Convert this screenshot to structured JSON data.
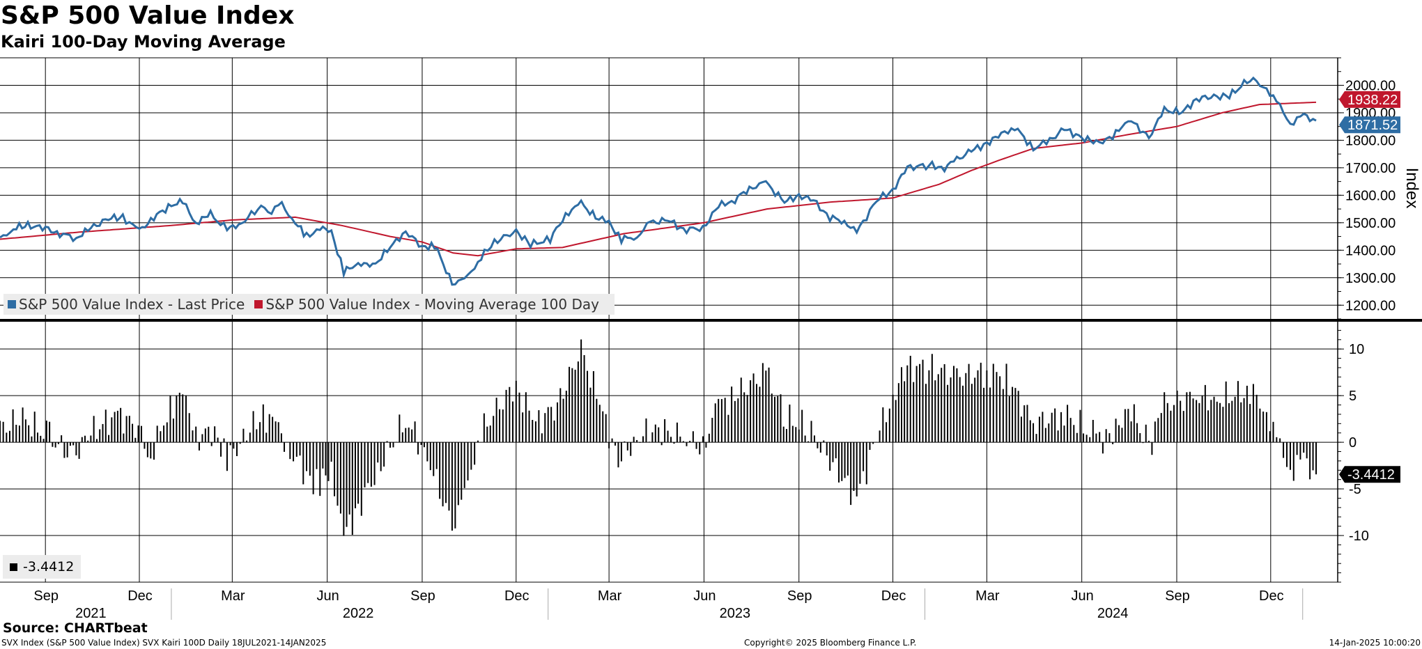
{
  "title": "S&P 500 Value Index",
  "subtitle": "Kairi 100-Day Moving Average",
  "source": "Source: CHARTbeat",
  "footer": {
    "left": "SVX Index (S&P 500 Value Index) SVX Kairi 100D  Daily 18JUL2021-14JAN2025",
    "center": "Copyright© 2025 Bloomberg Finance L.P.",
    "right": "14-Jan-2025 10:00:20"
  },
  "colors": {
    "price": "#2e6da4",
    "ma": "#c0172d",
    "kairi": "#000000",
    "grid": "#000000"
  },
  "chart_data": [
    {
      "type": "line",
      "ylabel": "Index",
      "ylim": [
        1150,
        2100
      ],
      "yticks": [
        "2000.00",
        "1900.00",
        "1800.00",
        "1700.00",
        "1600.00",
        "1500.00",
        "1400.00",
        "1300.00",
        "1200.00"
      ],
      "series": [
        {
          "name": "S&P 500 Value Index - Last Price",
          "color": "#2e6da4",
          "last_label": "1871.52",
          "points": [
            [
              "2021-07-19",
              1440
            ],
            [
              "2021-08-01",
              1480
            ],
            [
              "2021-08-15",
              1490
            ],
            [
              "2021-09-01",
              1480
            ],
            [
              "2021-09-15",
              1460
            ],
            [
              "2021-10-01",
              1445
            ],
            [
              "2021-10-15",
              1480
            ],
            [
              "2021-11-01",
              1515
            ],
            [
              "2021-11-15",
              1520
            ],
            [
              "2021-12-01",
              1470
            ],
            [
              "2021-12-15",
              1520
            ],
            [
              "2022-01-01",
              1565
            ],
            [
              "2022-01-12",
              1575
            ],
            [
              "2022-01-25",
              1500
            ],
            [
              "2022-02-08",
              1530
            ],
            [
              "2022-02-24",
              1475
            ],
            [
              "2022-03-10",
              1500
            ],
            [
              "2022-03-29",
              1560
            ],
            [
              "2022-04-08",
              1545
            ],
            [
              "2022-04-18",
              1565
            ],
            [
              "2022-05-01",
              1500
            ],
            [
              "2022-05-12",
              1450
            ],
            [
              "2022-05-25",
              1480
            ],
            [
              "2022-06-05",
              1470
            ],
            [
              "2022-06-17",
              1320
            ],
            [
              "2022-07-01",
              1355
            ],
            [
              "2022-07-15",
              1340
            ],
            [
              "2022-08-01",
              1410
            ],
            [
              "2022-08-16",
              1470
            ],
            [
              "2022-09-01",
              1410
            ],
            [
              "2022-09-13",
              1420
            ],
            [
              "2022-09-30",
              1280
            ],
            [
              "2022-10-12",
              1290
            ],
            [
              "2022-10-25",
              1360
            ],
            [
              "2022-11-10",
              1430
            ],
            [
              "2022-12-01",
              1470
            ],
            [
              "2022-12-15",
              1420
            ],
            [
              "2023-01-03",
              1440
            ],
            [
              "2023-01-18",
              1530
            ],
            [
              "2023-02-02",
              1570
            ],
            [
              "2023-02-16",
              1520
            ],
            [
              "2023-03-01",
              1500
            ],
            [
              "2023-03-13",
              1440
            ],
            [
              "2023-03-28",
              1450
            ],
            [
              "2023-04-10",
              1500
            ],
            [
              "2023-04-27",
              1510
            ],
            [
              "2023-05-12",
              1475
            ],
            [
              "2023-05-31",
              1480
            ],
            [
              "2023-06-15",
              1560
            ],
            [
              "2023-07-01",
              1585
            ],
            [
              "2023-07-15",
              1625
            ],
            [
              "2023-07-31",
              1645
            ],
            [
              "2023-08-18",
              1575
            ],
            [
              "2023-09-01",
              1600
            ],
            [
              "2023-09-15",
              1580
            ],
            [
              "2023-10-01",
              1520
            ],
            [
              "2023-10-15",
              1505
            ],
            [
              "2023-10-27",
              1465
            ],
            [
              "2023-11-15",
              1580
            ],
            [
              "2023-12-01",
              1620
            ],
            [
              "2023-12-15",
              1700
            ],
            [
              "2024-01-05",
              1710
            ],
            [
              "2024-01-20",
              1700
            ],
            [
              "2024-02-01",
              1730
            ],
            [
              "2024-02-15",
              1760
            ],
            [
              "2024-03-01",
              1790
            ],
            [
              "2024-03-15",
              1820
            ],
            [
              "2024-03-28",
              1850
            ],
            [
              "2024-04-15",
              1770
            ],
            [
              "2024-05-01",
              1800
            ],
            [
              "2024-05-15",
              1840
            ],
            [
              "2024-06-01",
              1810
            ],
            [
              "2024-06-15",
              1790
            ],
            [
              "2024-07-01",
              1810
            ],
            [
              "2024-07-16",
              1880
            ],
            [
              "2024-08-05",
              1810
            ],
            [
              "2024-08-20",
              1910
            ],
            [
              "2024-09-06",
              1900
            ],
            [
              "2024-09-20",
              1950
            ],
            [
              "2024-10-07",
              1960
            ],
            [
              "2024-10-22",
              1960
            ],
            [
              "2024-11-11",
              2025
            ],
            [
              "2024-11-27",
              1990
            ],
            [
              "2024-12-10",
              1920
            ],
            [
              "2024-12-20",
              1860
            ],
            [
              "2025-01-02",
              1890
            ],
            [
              "2025-01-14",
              1871.52
            ]
          ]
        },
        {
          "name": "S&P 500 Value Index - Moving Average 100 Day",
          "color": "#c0172d",
          "last_label": "1938.22",
          "points": [
            [
              "2021-07-19",
              1440
            ],
            [
              "2021-10-01",
              1465
            ],
            [
              "2022-01-01",
              1490
            ],
            [
              "2022-03-01",
              1510
            ],
            [
              "2022-05-01",
              1520
            ],
            [
              "2022-06-15",
              1490
            ],
            [
              "2022-08-01",
              1450
            ],
            [
              "2022-09-01",
              1430
            ],
            [
              "2022-10-01",
              1390
            ],
            [
              "2022-10-25",
              1380
            ],
            [
              "2022-12-01",
              1405
            ],
            [
              "2023-01-15",
              1410
            ],
            [
              "2023-03-15",
              1460
            ],
            [
              "2023-06-01",
              1500
            ],
            [
              "2023-08-01",
              1550
            ],
            [
              "2023-10-01",
              1575
            ],
            [
              "2023-12-01",
              1590
            ],
            [
              "2024-01-15",
              1640
            ],
            [
              "2024-02-15",
              1690
            ],
            [
              "2024-03-15",
              1730
            ],
            [
              "2024-04-15",
              1770
            ],
            [
              "2024-06-01",
              1790
            ],
            [
              "2024-07-15",
              1820
            ],
            [
              "2024-09-01",
              1850
            ],
            [
              "2024-10-15",
              1900
            ],
            [
              "2024-11-20",
              1930
            ],
            [
              "2025-01-14",
              1938.22
            ]
          ]
        }
      ]
    },
    {
      "type": "bar",
      "ylim": [
        -15,
        13
      ],
      "yticks": [
        "10",
        "5",
        "0",
        "-5",
        "-10"
      ],
      "series": [
        {
          "name": "",
          "color": "#000000",
          "last_label": "-3.4412",
          "points": [
            [
              "2021-07-19",
              1.5
            ],
            [
              "2021-08-10",
              2.5
            ],
            [
              "2021-09-05",
              0.5
            ],
            [
              "2021-09-28",
              -1.5
            ],
            [
              "2021-10-15",
              1.0
            ],
            [
              "2021-11-10",
              3.0
            ],
            [
              "2021-11-30",
              1.5
            ],
            [
              "2021-12-12",
              -1.5
            ],
            [
              "2021-12-31",
              4.0
            ],
            [
              "2022-01-12",
              5.0
            ],
            [
              "2022-01-28",
              0.5
            ],
            [
              "2022-02-12",
              1.5
            ],
            [
              "2022-02-24",
              -2.0
            ],
            [
              "2022-03-15",
              1.0
            ],
            [
              "2022-03-31",
              3.0
            ],
            [
              "2022-04-12",
              2.0
            ],
            [
              "2022-04-26",
              -1.0
            ],
            [
              "2022-05-12",
              -3.5
            ],
            [
              "2022-05-25",
              -4.5
            ],
            [
              "2022-06-05",
              -3.0
            ],
            [
              "2022-06-17",
              -10.0
            ],
            [
              "2022-07-01",
              -7.0
            ],
            [
              "2022-07-20",
              -3.0
            ],
            [
              "2022-08-16",
              2.5
            ],
            [
              "2022-09-06",
              -1.5
            ],
            [
              "2022-09-30",
              -9.0
            ],
            [
              "2022-10-12",
              -6.0
            ],
            [
              "2022-10-25",
              0.5
            ],
            [
              "2022-11-15",
              4.0
            ],
            [
              "2022-12-01",
              6.0
            ],
            [
              "2022-12-20",
              2.0
            ],
            [
              "2023-01-10",
              4.0
            ],
            [
              "2023-02-02",
              10.0
            ],
            [
              "2023-02-20",
              4.0
            ],
            [
              "2023-03-10",
              -2.0
            ],
            [
              "2023-03-28",
              0.5
            ],
            [
              "2023-04-15",
              1.5
            ],
            [
              "2023-05-12",
              0.5
            ],
            [
              "2023-05-31",
              -0.5
            ],
            [
              "2023-06-15",
              4.0
            ],
            [
              "2023-07-01",
              5.0
            ],
            [
              "2023-07-31",
              7.5
            ],
            [
              "2023-08-20",
              2.5
            ],
            [
              "2023-09-10",
              1.5
            ],
            [
              "2023-10-01",
              -2.0
            ],
            [
              "2023-10-27",
              -6.0
            ],
            [
              "2023-11-15",
              0.5
            ],
            [
              "2023-12-01",
              5.0
            ],
            [
              "2023-12-15",
              8.0
            ],
            [
              "2024-01-05",
              8.0
            ],
            [
              "2024-02-01",
              7.0
            ],
            [
              "2024-03-01",
              7.5
            ],
            [
              "2024-03-20",
              7.0
            ],
            [
              "2024-04-15",
              2.0
            ],
            [
              "2024-05-15",
              3.0
            ],
            [
              "2024-06-15",
              0.5
            ],
            [
              "2024-07-01",
              0.5
            ],
            [
              "2024-07-16",
              4.0
            ],
            [
              "2024-08-05",
              -0.5
            ],
            [
              "2024-08-20",
              4.0
            ],
            [
              "2024-09-20",
              5.0
            ],
            [
              "2024-10-10",
              4.5
            ],
            [
              "2024-11-11",
              5.5
            ],
            [
              "2024-11-27",
              3.5
            ],
            [
              "2024-12-10",
              -1.0
            ],
            [
              "2024-12-20",
              -3.0
            ],
            [
              "2025-01-02",
              -2.0
            ],
            [
              "2025-01-14",
              -3.4412
            ]
          ]
        }
      ]
    }
  ],
  "x_axis": {
    "months": [
      {
        "label": "Sep",
        "date": "2021-09-01"
      },
      {
        "label": "Dec",
        "date": "2021-12-01"
      },
      {
        "label": "Mar",
        "date": "2022-03-01"
      },
      {
        "label": "Jun",
        "date": "2022-06-01"
      },
      {
        "label": "Sep",
        "date": "2022-09-01"
      },
      {
        "label": "Dec",
        "date": "2022-12-01"
      },
      {
        "label": "Mar",
        "date": "2023-03-01"
      },
      {
        "label": "Jun",
        "date": "2023-06-01"
      },
      {
        "label": "Sep",
        "date": "2023-09-01"
      },
      {
        "label": "Dec",
        "date": "2023-12-01"
      },
      {
        "label": "Mar",
        "date": "2024-03-01"
      },
      {
        "label": "Jun",
        "date": "2024-06-01"
      },
      {
        "label": "Sep",
        "date": "2024-09-01"
      },
      {
        "label": "Dec",
        "date": "2024-12-01"
      }
    ],
    "years": [
      {
        "label": "2021",
        "date": "2021-10-15"
      },
      {
        "label": "2022",
        "date": "2022-07-01"
      },
      {
        "label": "2023",
        "date": "2023-07-01"
      },
      {
        "label": "2024",
        "date": "2024-07-01"
      }
    ],
    "year_breaks": [
      "2022-01-01",
      "2023-01-01",
      "2024-01-01",
      "2025-01-01"
    ]
  }
}
